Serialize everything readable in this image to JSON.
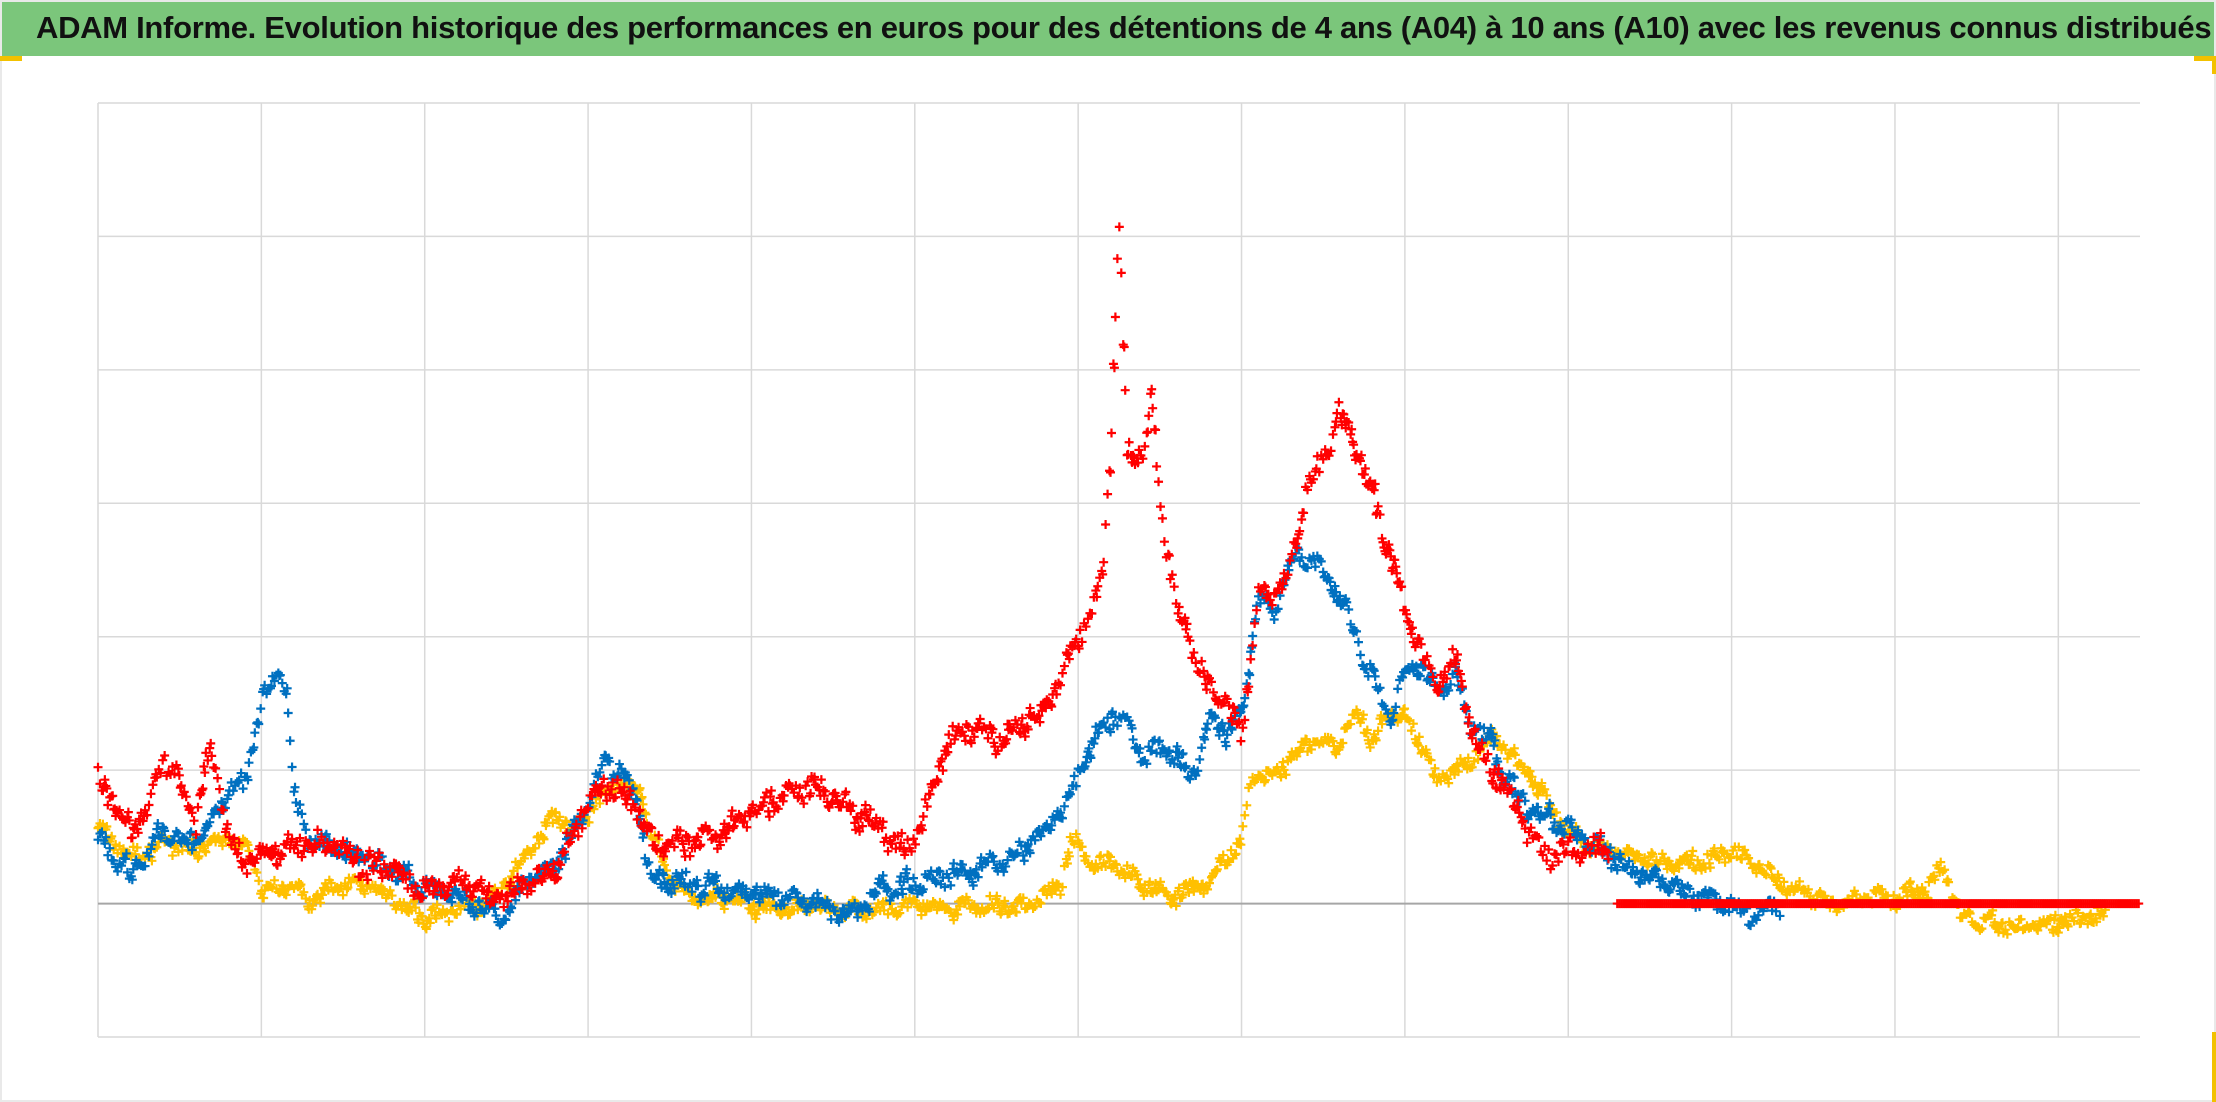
{
  "header": {
    "title": "ADAM Informe. Evolution historique des performances en euros pour des détentions de 4 ans (A04) à 10 ans (A10) avec les revenus connus distribués"
  },
  "colors": {
    "title_bg": "#7bc67b",
    "grid": "#d9d9d9",
    "zero_line": "#a6a6a6",
    "accent": "#f2c100"
  },
  "chart_data": {
    "type": "scatter",
    "marker": "plus",
    "grid": true,
    "x_tick_labels_visible": false,
    "y_tick_labels_visible": false,
    "xlim": [
      0,
      12.5
    ],
    "ylim": [
      -1,
      6
    ],
    "x_gridlines": [
      1,
      2,
      3,
      4,
      5,
      6,
      7,
      8,
      9,
      10,
      11,
      12
    ],
    "y_gridlines": [
      -1,
      0,
      1,
      2,
      3,
      4,
      5,
      6
    ],
    "zero_line": 0,
    "series": [
      {
        "color": "#ffc000",
        "jitter": 0.05,
        "x_end": 12.3,
        "points": [
          [
            0,
            0.55
          ],
          [
            0.2,
            0.35
          ],
          [
            0.4,
            0.45
          ],
          [
            0.6,
            0.4
          ],
          [
            0.8,
            0.5
          ],
          [
            0.95,
            0.35
          ],
          [
            1.0,
            0.1
          ],
          [
            1.2,
            0.12
          ],
          [
            1.3,
            0.0
          ],
          [
            1.4,
            0.12
          ],
          [
            1.6,
            0.15
          ],
          [
            1.8,
            0.05
          ],
          [
            2.0,
            -0.1
          ],
          [
            2.2,
            -0.05
          ],
          [
            2.4,
            0.0
          ],
          [
            2.6,
            0.35
          ],
          [
            2.8,
            0.65
          ],
          [
            2.9,
            0.55
          ],
          [
            3.05,
            0.75
          ],
          [
            3.2,
            0.9
          ],
          [
            3.3,
            0.85
          ],
          [
            3.4,
            0.5
          ],
          [
            3.5,
            0.2
          ],
          [
            3.6,
            0.05
          ],
          [
            3.8,
            0.05
          ],
          [
            4.0,
            0.0
          ],
          [
            4.2,
            -0.05
          ],
          [
            4.4,
            0.0
          ],
          [
            4.6,
            -0.05
          ],
          [
            4.8,
            -0.05
          ],
          [
            5.0,
            0.0
          ],
          [
            5.2,
            -0.05
          ],
          [
            5.4,
            0.0
          ],
          [
            5.6,
            -0.05
          ],
          [
            5.8,
            0.05
          ],
          [
            5.9,
            0.15
          ],
          [
            5.95,
            0.5
          ],
          [
            6.1,
            0.3
          ],
          [
            6.2,
            0.3
          ],
          [
            6.4,
            0.15
          ],
          [
            6.6,
            0.05
          ],
          [
            6.8,
            0.15
          ],
          [
            6.9,
            0.35
          ],
          [
            7.0,
            0.45
          ],
          [
            7.05,
            0.95
          ],
          [
            7.2,
            0.95
          ],
          [
            7.4,
            1.2
          ],
          [
            7.6,
            1.2
          ],
          [
            7.7,
            1.45
          ],
          [
            7.8,
            1.2
          ],
          [
            7.9,
            1.45
          ],
          [
            8.0,
            1.4
          ],
          [
            8.1,
            1.2
          ],
          [
            8.2,
            0.9
          ],
          [
            8.3,
            1.0
          ],
          [
            8.4,
            1.05
          ],
          [
            8.5,
            1.25
          ],
          [
            8.6,
            1.2
          ],
          [
            8.65,
            1.1
          ],
          [
            8.8,
            0.9
          ],
          [
            8.9,
            0.7
          ],
          [
            9.0,
            0.55
          ],
          [
            9.2,
            0.4
          ],
          [
            9.4,
            0.35
          ],
          [
            9.6,
            0.3
          ],
          [
            9.8,
            0.3
          ],
          [
            10.0,
            0.4
          ],
          [
            10.2,
            0.25
          ],
          [
            10.4,
            0.1
          ],
          [
            10.6,
            0.0
          ],
          [
            10.8,
            0.05
          ],
          [
            11.0,
            0.05
          ],
          [
            11.2,
            0.1
          ],
          [
            11.3,
            0.3
          ],
          [
            11.35,
            0.05
          ],
          [
            11.4,
            -0.1
          ],
          [
            11.6,
            -0.15
          ],
          [
            11.8,
            -0.18
          ],
          [
            12.0,
            -0.15
          ],
          [
            12.3,
            -0.08
          ]
        ]
      },
      {
        "color": "#0070c0",
        "jitter": 0.06,
        "x_end": 10.3,
        "points": [
          [
            0,
            0.5
          ],
          [
            0.1,
            0.35
          ],
          [
            0.2,
            0.2
          ],
          [
            0.3,
            0.35
          ],
          [
            0.4,
            0.55
          ],
          [
            0.5,
            0.5
          ],
          [
            0.6,
            0.45
          ],
          [
            0.7,
            0.6
          ],
          [
            0.8,
            0.85
          ],
          [
            0.9,
            0.9
          ],
          [
            1.0,
            1.5
          ],
          [
            1.1,
            1.75
          ],
          [
            1.15,
            1.6
          ],
          [
            1.2,
            0.8
          ],
          [
            1.3,
            0.45
          ],
          [
            1.4,
            0.45
          ],
          [
            1.6,
            0.35
          ],
          [
            1.8,
            0.25
          ],
          [
            2.0,
            0.1
          ],
          [
            2.2,
            0.05
          ],
          [
            2.4,
            -0.05
          ],
          [
            2.5,
            -0.1
          ],
          [
            2.6,
            0.15
          ],
          [
            2.8,
            0.3
          ],
          [
            3.0,
            0.75
          ],
          [
            3.1,
            1.05
          ],
          [
            3.2,
            1.0
          ],
          [
            3.3,
            0.75
          ],
          [
            3.35,
            0.4
          ],
          [
            3.4,
            0.2
          ],
          [
            3.6,
            0.15
          ],
          [
            3.8,
            0.1
          ],
          [
            4.0,
            0.1
          ],
          [
            4.2,
            0.05
          ],
          [
            4.4,
            0.0
          ],
          [
            4.6,
            -0.1
          ],
          [
            4.8,
            0.1
          ],
          [
            5.0,
            0.15
          ],
          [
            5.2,
            0.2
          ],
          [
            5.4,
            0.25
          ],
          [
            5.6,
            0.35
          ],
          [
            5.8,
            0.55
          ],
          [
            5.9,
            0.7
          ],
          [
            6.0,
            0.95
          ],
          [
            6.1,
            1.25
          ],
          [
            6.2,
            1.4
          ],
          [
            6.3,
            1.35
          ],
          [
            6.4,
            1.1
          ],
          [
            6.5,
            1.15
          ],
          [
            6.6,
            1.1
          ],
          [
            6.7,
            0.95
          ],
          [
            6.8,
            1.35
          ],
          [
            6.9,
            1.3
          ],
          [
            7.0,
            1.4
          ],
          [
            7.1,
            2.3
          ],
          [
            7.2,
            2.2
          ],
          [
            7.3,
            2.6
          ],
          [
            7.4,
            2.6
          ],
          [
            7.5,
            2.5
          ],
          [
            7.6,
            2.3
          ],
          [
            7.7,
            2.0
          ],
          [
            7.8,
            1.7
          ],
          [
            7.9,
            1.4
          ],
          [
            8.0,
            1.7
          ],
          [
            8.1,
            1.8
          ],
          [
            8.2,
            1.55
          ],
          [
            8.3,
            1.75
          ],
          [
            8.4,
            1.35
          ],
          [
            8.5,
            1.25
          ],
          [
            8.6,
            1.0
          ],
          [
            8.7,
            0.8
          ],
          [
            8.8,
            0.7
          ],
          [
            9.0,
            0.55
          ],
          [
            9.2,
            0.4
          ],
          [
            9.4,
            0.25
          ],
          [
            9.6,
            0.15
          ],
          [
            9.8,
            0.05
          ],
          [
            10.0,
            0.0
          ],
          [
            10.1,
            -0.08
          ],
          [
            10.3,
            0.0
          ]
        ]
      },
      {
        "color": "#ff0000",
        "jitter": 0.07,
        "x_end": 9.25,
        "points": [
          [
            0,
            0.95
          ],
          [
            0.1,
            0.75
          ],
          [
            0.2,
            0.55
          ],
          [
            0.3,
            0.7
          ],
          [
            0.4,
            1.1
          ],
          [
            0.45,
            1.0
          ],
          [
            0.5,
            0.9
          ],
          [
            0.6,
            0.6
          ],
          [
            0.65,
            1.0
          ],
          [
            0.7,
            1.1
          ],
          [
            0.75,
            0.8
          ],
          [
            0.8,
            0.5
          ],
          [
            0.9,
            0.3
          ],
          [
            1.0,
            0.35
          ],
          [
            1.2,
            0.45
          ],
          [
            1.4,
            0.45
          ],
          [
            1.6,
            0.3
          ],
          [
            1.8,
            0.25
          ],
          [
            2.0,
            0.1
          ],
          [
            2.2,
            0.15
          ],
          [
            2.4,
            0.05
          ],
          [
            2.5,
            0.05
          ],
          [
            2.6,
            0.15
          ],
          [
            2.8,
            0.25
          ],
          [
            3.0,
            0.75
          ],
          [
            3.1,
            0.9
          ],
          [
            3.2,
            0.85
          ],
          [
            3.3,
            0.7
          ],
          [
            3.4,
            0.45
          ],
          [
            3.6,
            0.45
          ],
          [
            3.8,
            0.5
          ],
          [
            4.0,
            0.7
          ],
          [
            4.2,
            0.8
          ],
          [
            4.4,
            0.9
          ],
          [
            4.5,
            0.8
          ],
          [
            4.6,
            0.7
          ],
          [
            4.8,
            0.55
          ],
          [
            4.9,
            0.4
          ],
          [
            5.0,
            0.5
          ],
          [
            5.1,
            0.8
          ],
          [
            5.2,
            1.2
          ],
          [
            5.3,
            1.3
          ],
          [
            5.4,
            1.35
          ],
          [
            5.5,
            1.2
          ],
          [
            5.6,
            1.3
          ],
          [
            5.8,
            1.45
          ],
          [
            5.9,
            1.7
          ],
          [
            6.0,
            2.0
          ],
          [
            6.1,
            2.2
          ],
          [
            6.15,
            2.5
          ],
          [
            6.2,
            3.5
          ],
          [
            6.25,
            5.1
          ],
          [
            6.3,
            3.4
          ],
          [
            6.4,
            3.4
          ],
          [
            6.45,
            3.8
          ],
          [
            6.5,
            3.0
          ],
          [
            6.6,
            2.2
          ],
          [
            6.7,
            1.9
          ],
          [
            6.8,
            1.6
          ],
          [
            6.9,
            1.5
          ],
          [
            7.0,
            1.25
          ],
          [
            7.1,
            2.3
          ],
          [
            7.2,
            2.3
          ],
          [
            7.3,
            2.5
          ],
          [
            7.4,
            3.15
          ],
          [
            7.5,
            3.3
          ],
          [
            7.6,
            3.7
          ],
          [
            7.7,
            3.4
          ],
          [
            7.8,
            3.05
          ],
          [
            7.9,
            2.65
          ],
          [
            8.0,
            2.2
          ],
          [
            8.1,
            1.9
          ],
          [
            8.2,
            1.65
          ],
          [
            8.3,
            1.85
          ],
          [
            8.4,
            1.35
          ],
          [
            8.5,
            1.05
          ],
          [
            8.6,
            0.9
          ],
          [
            8.7,
            0.65
          ],
          [
            8.8,
            0.45
          ],
          [
            8.9,
            0.35
          ],
          [
            8.95,
            0.4
          ]
        ],
        "flat_segment": {
          "x_start": 9.3,
          "x_end": 12.5,
          "value": 0
        }
      }
    ]
  }
}
